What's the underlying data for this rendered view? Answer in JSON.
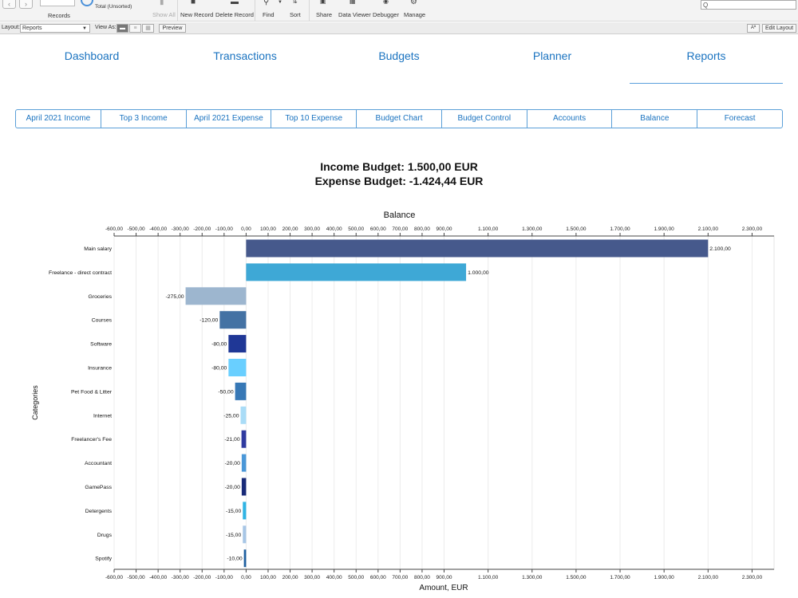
{
  "toolbar": {
    "records_label": "Records",
    "total_label": "Total (Unsorted)",
    "show_all": "Show All",
    "new_record": "New Record",
    "delete_record": "Delete Record",
    "find": "Find",
    "sort": "Sort",
    "share": "Share",
    "data_viewer": "Data Viewer",
    "debugger": "Debugger",
    "manage": "Manage",
    "search_placeholder": "Q"
  },
  "layout_bar": {
    "layout_label": "Layout:",
    "layout_value": "Reports",
    "view_as_label": "View As:",
    "preview": "Preview",
    "aa": "Aª",
    "edit_layout": "Edit Layout"
  },
  "main_nav": {
    "tabs": [
      "Dashboard",
      "Transactions",
      "Budgets",
      "Planner",
      "Reports"
    ],
    "active": "Reports"
  },
  "sub_tabs": [
    "April 2021 Income",
    "Top 3 Income",
    "April 2021 Expense",
    "Top 10 Expense",
    "Budget Chart",
    "Budget Control",
    "Accounts",
    "Balance",
    "Forecast"
  ],
  "summary": {
    "income_budget": "Income Budget: 1.500,00 EUR",
    "expense_budget": "Expense Budget: -1.424,44 EUR"
  },
  "chart_data": {
    "type": "bar",
    "orientation": "horizontal",
    "title": "Balance",
    "xlabel": "Amount, EUR",
    "ylabel": "Categories",
    "xlim": [
      -600,
      2400
    ],
    "grid": true,
    "x_ticks": [
      "-600,00",
      "-500,00",
      "-400,00",
      "-300,00",
      "-200,00",
      "-100,00",
      "0,00",
      "100,00",
      "200,00",
      "300,00",
      "400,00",
      "500,00",
      "600,00",
      "700,00",
      "800,00",
      "900,00",
      "1.100,00",
      "1.300,00",
      "1.500,00",
      "1.700,00",
      "1.900,00",
      "2.100,00",
      "2.300,00"
    ],
    "x_tick_values": [
      -600,
      -500,
      -400,
      -300,
      -200,
      -100,
      0,
      100,
      200,
      300,
      400,
      500,
      600,
      700,
      800,
      900,
      1100,
      1300,
      1500,
      1700,
      1900,
      2100,
      2300
    ],
    "categories": [
      "Main salary",
      "Freelance - direct contract",
      "Groceries",
      "Courses",
      "Software",
      "Insurance",
      "Pet Food & Litter",
      "Internet",
      "Freelancer's Fee",
      "Accountant",
      "GamePass",
      "Detergents",
      "Drugs",
      "Spotify"
    ],
    "values": [
      2100,
      1000,
      -275,
      -120,
      -80,
      -80,
      -50,
      -25,
      -21,
      -20,
      -20,
      -15,
      -15,
      -10
    ],
    "value_labels": [
      "2.100,00",
      "1.000,00",
      "-275,00",
      "-120,00",
      "-80,00",
      "-80,00",
      "-50,00",
      "-25,00",
      "-21,00",
      "-20,00",
      "-20,00",
      "-15,00",
      "-15,00",
      "-10,00"
    ],
    "colors": [
      "#46598c",
      "#3ea8d6",
      "#9db6cf",
      "#4472a4",
      "#1f3796",
      "#69cfff",
      "#3778b6",
      "#a9dcf7",
      "#2f3aa0",
      "#4a97d8",
      "#182a78",
      "#30b4e4",
      "#a7c6e6",
      "#1e5fa0"
    ]
  }
}
